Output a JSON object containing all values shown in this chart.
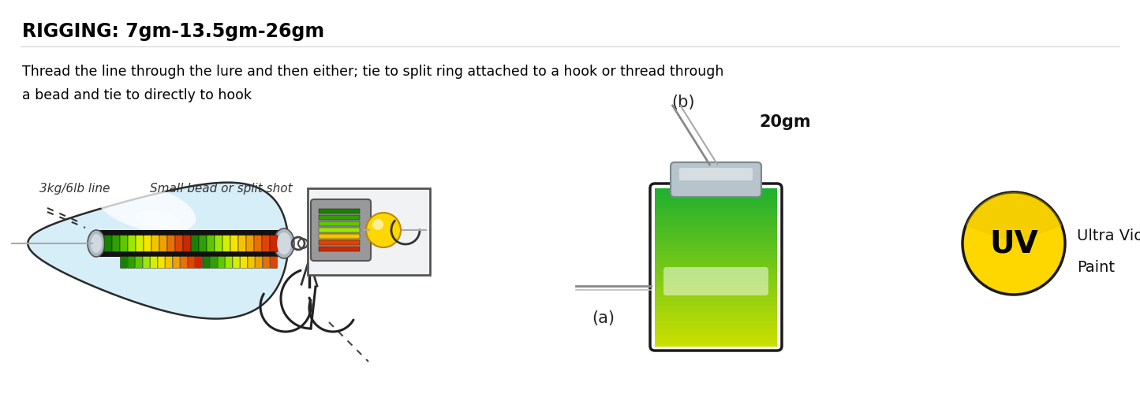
{
  "title": "RIGGING: 7gm-13.5gm-26gm",
  "body_text_line1": "Thread the line through the lure and then either; tie to split ring attached to a hook or thread through",
  "body_text_line2": "a bead and tie to directly to hook",
  "label_line": "3kg/6lb line",
  "label_bead": "Small bead or split shot",
  "label_weight": "20gm",
  "label_a": "(a)",
  "label_b": "(b)",
  "label_uv1": "Ultra Violet",
  "label_uv2": "Paint",
  "uv_text": "UV",
  "bg_color": "#ffffff",
  "title_color": "#000000",
  "body_color": "#000000",
  "uv_circle_color": "#FFD700",
  "uv_text_color": "#000000",
  "seg_colors_main": [
    "#1a8000",
    "#2ea000",
    "#5dc800",
    "#9de800",
    "#d4f000",
    "#f5e400",
    "#f5c400",
    "#f0a000",
    "#e87000",
    "#e04400",
    "#cc2800",
    "#1a8000",
    "#2ea000",
    "#5dc800",
    "#9de800",
    "#d4f000",
    "#f5e400",
    "#f5c400",
    "#f0a000",
    "#e87000",
    "#e04400",
    "#cc2800"
  ],
  "seg_colors_bottom": [
    "#1a8000",
    "#2ea000",
    "#5dc800",
    "#9de800",
    "#d4f000",
    "#f5e400",
    "#f5c400",
    "#f0a000",
    "#e87000",
    "#e04400",
    "#cc2800",
    "#1a8000",
    "#2ea000",
    "#5dc800",
    "#9de800",
    "#d4f000",
    "#f5e400",
    "#f5c400",
    "#f0a000",
    "#e87000",
    "#e04400"
  ]
}
